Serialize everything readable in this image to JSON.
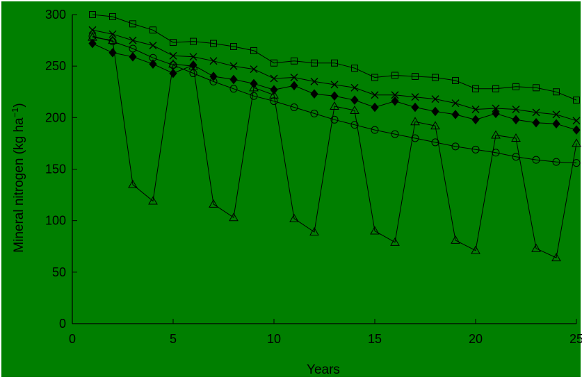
{
  "colors": {
    "background": "#007f00",
    "stroke": "#000000",
    "border": "#ffffff"
  },
  "chart_data": {
    "type": "line",
    "title": "",
    "xlabel": "Years",
    "ylabel": {
      "main": "Mineral nitrogen (kg ha",
      "sup": "−1",
      "end": ")"
    },
    "xlim": [
      0,
      25
    ],
    "ylim": [
      0,
      300
    ],
    "xticks": [
      0,
      5,
      10,
      15,
      20,
      25
    ],
    "yticks": [
      0,
      50,
      100,
      150,
      200,
      250,
      300
    ],
    "grid": false,
    "legend": "none",
    "x": [
      1,
      2,
      3,
      4,
      5,
      6,
      7,
      8,
      9,
      10,
      11,
      12,
      13,
      14,
      15,
      16,
      17,
      18,
      19,
      20,
      21,
      22,
      23,
      24,
      25
    ],
    "series": [
      {
        "marker": "square",
        "values": [
          300,
          298,
          291,
          285,
          273,
          274,
          272,
          269,
          265,
          253,
          255,
          253,
          253,
          248,
          239,
          241,
          240,
          239,
          236,
          228,
          228,
          230,
          229,
          225,
          217
        ]
      },
      {
        "marker": "cross",
        "values": [
          285,
          281,
          275,
          270,
          260,
          259,
          255,
          250,
          247,
          238,
          239,
          235,
          232,
          229,
          222,
          222,
          220,
          218,
          214,
          208,
          209,
          208,
          205,
          203,
          197
        ]
      },
      {
        "marker": "diamond",
        "values": [
          272,
          263,
          259,
          252,
          243,
          251,
          240,
          237,
          233,
          227,
          231,
          223,
          221,
          217,
          210,
          216,
          210,
          206,
          203,
          198,
          204,
          198,
          195,
          194,
          188
        ]
      },
      {
        "marker": "circle",
        "values": [
          279,
          274,
          267,
          258,
          251,
          243,
          235,
          228,
          221,
          216,
          210,
          204,
          198,
          193,
          188,
          184,
          180,
          176,
          172,
          169,
          166,
          162,
          159,
          157,
          156
        ]
      },
      {
        "marker": "triangle",
        "values": [
          278,
          275,
          135,
          119,
          252,
          250,
          116,
          103,
          229,
          222,
          102,
          89,
          211,
          207,
          90,
          79,
          196,
          192,
          81,
          71,
          183,
          180,
          73,
          64,
          175
        ]
      }
    ]
  }
}
